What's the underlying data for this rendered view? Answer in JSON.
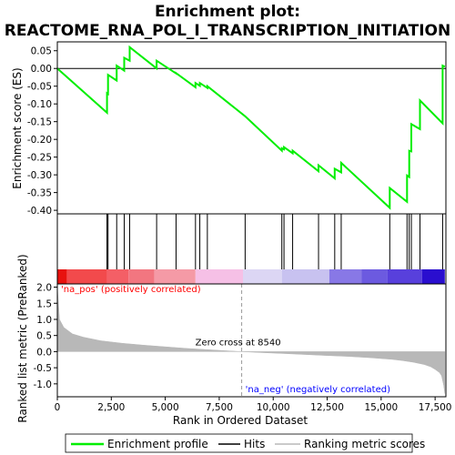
{
  "chart_data": {
    "type": "line",
    "title_line1": "Enrichment plot:",
    "title_line2": "REACTOME_RNA_POL_I_TRANSCRIPTION_INITIATION",
    "es_ylabel": "Enrichment score (ES)",
    "rank_ylabel": "Ranked list metric (PreRanked)",
    "xlabel": "Rank in Ordered Dataset",
    "xlim": [
      0,
      18000
    ],
    "x_ticks": [
      0,
      2500,
      5000,
      7500,
      10000,
      12500,
      15000,
      17500
    ],
    "x_tick_labels": [
      "0",
      "2,500",
      "5,000",
      "7,500",
      "10,000",
      "12,500",
      "15,000",
      "17,500"
    ],
    "es_ylim": [
      -0.41,
      0.075
    ],
    "es_ticks": [
      0.05,
      0.0,
      -0.05,
      -0.1,
      -0.15,
      -0.2,
      -0.25,
      -0.3,
      -0.35,
      -0.4
    ],
    "es_tick_labels": [
      "0.05",
      "0.00",
      "-0.05",
      "-0.10",
      "-0.15",
      "-0.20",
      "-0.25",
      "-0.30",
      "-0.35",
      "-0.40"
    ],
    "rank_ylim": [
      -1.4,
      2.1
    ],
    "rank_ticks": [
      2.0,
      1.5,
      1.0,
      0.5,
      0.0,
      -0.5,
      -1.0
    ],
    "rank_tick_labels": [
      "2.0",
      "1.5",
      "1.0",
      "0.5",
      "0.0",
      "-0.5",
      "-1.0"
    ],
    "hits": [
      2300,
      2350,
      2750,
      3100,
      3350,
      4600,
      5500,
      6400,
      6600,
      6950,
      8700,
      10400,
      10500,
      10900,
      12100,
      12850,
      13150,
      15400,
      16200,
      16300,
      16400,
      16800,
      17850
    ],
    "es_curve": {
      "x": [
        0,
        2300,
        2300,
        2350,
        2350,
        2750,
        2750,
        3100,
        3100,
        3350,
        3350,
        4600,
        4600,
        5500,
        5500,
        6400,
        6400,
        6600,
        6600,
        6950,
        6950,
        8700,
        10400,
        10400,
        10500,
        10500,
        10900,
        10900,
        12100,
        12100,
        12850,
        12850,
        13150,
        13150,
        15400,
        15400,
        16200,
        16200,
        16300,
        16300,
        16400,
        16400,
        16800,
        16800,
        17850,
        17850,
        17950
      ],
      "y": [
        0.0,
        -0.125,
        -0.07,
        -0.072,
        -0.018,
        -0.034,
        0.008,
        -0.006,
        0.03,
        0.022,
        0.06,
        0.0,
        0.022,
        -0.014,
        -0.013,
        -0.053,
        -0.041,
        -0.049,
        -0.041,
        -0.055,
        -0.05,
        -0.135,
        -0.232,
        -0.225,
        -0.228,
        -0.222,
        -0.239,
        -0.232,
        -0.29,
        -0.273,
        -0.31,
        -0.283,
        -0.293,
        -0.266,
        -0.393,
        -0.337,
        -0.376,
        -0.302,
        -0.306,
        -0.232,
        -0.234,
        -0.157,
        -0.171,
        -0.09,
        -0.155,
        0.008,
        0.005
      ]
    },
    "metric_curve": {
      "x": [
        0,
        100,
        300,
        700,
        1200,
        2000,
        3000,
        4000,
        5000,
        6000,
        7000,
        8000,
        8540,
        9500,
        10500,
        11500,
        12500,
        13500,
        14500,
        15500,
        16000,
        16500,
        17000,
        17300,
        17500,
        17700,
        17800,
        17850,
        17900,
        17950
      ],
      "y": [
        2.0,
        1.0,
        0.75,
        0.55,
        0.45,
        0.34,
        0.26,
        0.2,
        0.15,
        0.1,
        0.06,
        0.02,
        0.0,
        -0.03,
        -0.06,
        -0.09,
        -0.12,
        -0.15,
        -0.19,
        -0.24,
        -0.28,
        -0.33,
        -0.4,
        -0.47,
        -0.55,
        -0.65,
        -0.75,
        -0.9,
        -1.05,
        -1.3
      ]
    },
    "gradient_segments": [
      {
        "from": 0,
        "to": 450,
        "color": "#e8120e"
      },
      {
        "from": 450,
        "to": 2300,
        "color": "#f24a4c"
      },
      {
        "from": 2300,
        "to": 3300,
        "color": "#f45f66"
      },
      {
        "from": 3300,
        "to": 4500,
        "color": "#f27680"
      },
      {
        "from": 4500,
        "to": 6400,
        "color": "#f59aa6"
      },
      {
        "from": 6400,
        "to": 8600,
        "color": "#f6c0e6"
      },
      {
        "from": 8600,
        "to": 10400,
        "color": "#dcd6f4"
      },
      {
        "from": 10400,
        "to": 12600,
        "color": "#c8c2f0"
      },
      {
        "from": 12600,
        "to": 14100,
        "color": "#8878e6"
      },
      {
        "from": 14100,
        "to": 15300,
        "color": "#6c5ae0"
      },
      {
        "from": 15300,
        "to": 16900,
        "color": "#5840dc"
      },
      {
        "from": 16900,
        "to": 17950,
        "color": "#2a0ecf"
      }
    ],
    "zero_cross_x": 8540,
    "zero_cross_label": "Zero cross at 8540",
    "pos_label": "'na_pos' (positively correlated)",
    "neg_label": "'na_neg' (negatively correlated)",
    "colors": {
      "es_line": "#00ee00",
      "metric_fill": "#b8b8b8",
      "pos_text": "#ff0000",
      "neg_text": "#0000ff",
      "hits": "#000000"
    },
    "legend": [
      {
        "label": "Enrichment profile",
        "color": "#00ee00"
      },
      {
        "label": "Hits",
        "color": "#000000"
      },
      {
        "label": "Ranking metric scores",
        "color": "#b8b8b8"
      }
    ]
  }
}
